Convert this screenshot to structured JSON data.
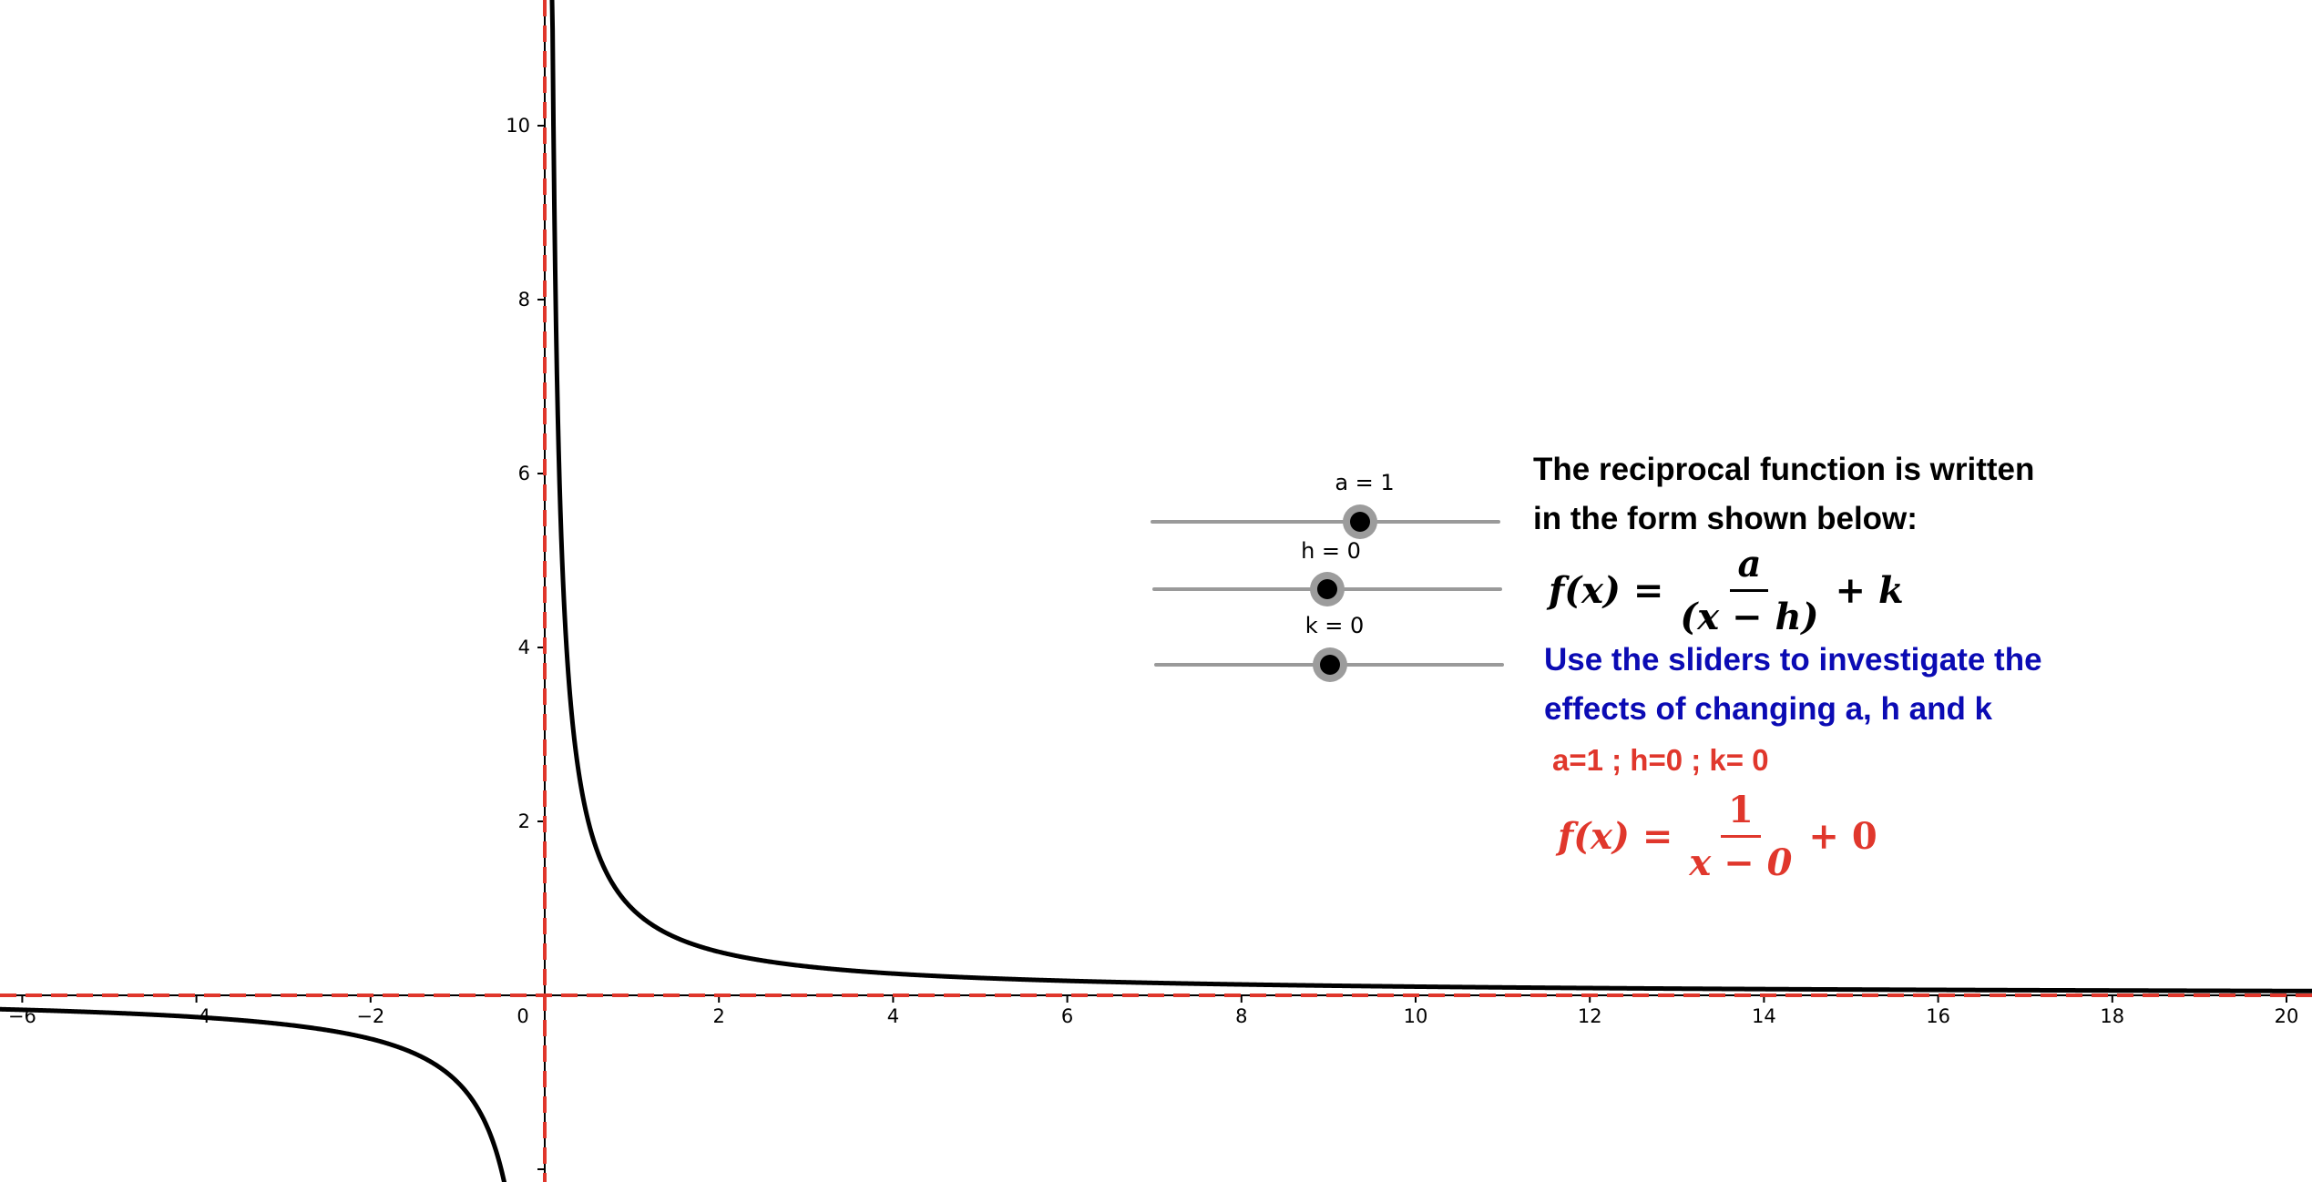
{
  "window": {},
  "graph": {
    "x_ticks": [
      "−6",
      "−4",
      "−2",
      "0",
      "2",
      "4",
      "6",
      "8",
      "10",
      "12",
      "14",
      "16",
      "18",
      "20"
    ],
    "y_ticks": [
      "2",
      "4",
      "6",
      "8",
      "10"
    ],
    "curve_color": "#000000",
    "asymptote_color": "#e0372c"
  },
  "sliders": [
    {
      "label": "a = 1",
      "value": 1
    },
    {
      "label": "h = 0",
      "value": 0
    },
    {
      "label": "k = 0",
      "value": 0
    }
  ],
  "text": {
    "intro_line1": "The reciprocal function is written",
    "intro_line2": "in the form shown below:",
    "instruction_line1": "Use the sliders to investigate the",
    "instruction_line2": "effects of changing a, h and k",
    "current_values": "a=1 ; h=0 ; k= 0"
  },
  "formula_general": {
    "lhs": "f(x) =",
    "numerator": "a",
    "denominator": "(x − h)",
    "tail": "+ k"
  },
  "formula_current": {
    "lhs": "f(x) =",
    "numerator": "1",
    "denominator": "x − 0",
    "tail": "+ 0"
  },
  "colors": {
    "black_text": "#000000",
    "blue_text": "#0b0bb4",
    "red_text": "#e0372c",
    "slider_track": "#9a9a9a"
  }
}
